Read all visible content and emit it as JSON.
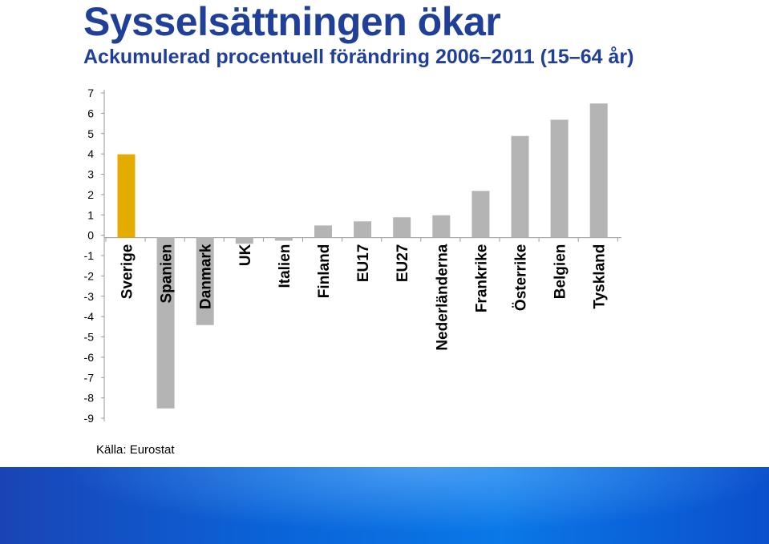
{
  "header": {
    "title": "Sysselsättningen ökar",
    "subtitle": "Ackumulerad procentuell förändring 2006–2011 (15–64 år)"
  },
  "source": "Källa: Eurostat",
  "colors": {
    "highlight": "#e3ad00",
    "bar": "#b4b4b4",
    "title": "#1f3f99",
    "footer": "#0a63d8"
  },
  "chart_data": {
    "type": "bar",
    "title": "Sysselsättningen ökar",
    "subtitle": "Ackumulerad procentuell förändring 2006–2011 (15–64 år)",
    "categories": [
      "Sverige",
      "Spanien",
      "Danmark",
      "UK",
      "Italien",
      "Finland",
      "EU17",
      "EU27",
      "Nederländerna",
      "Frankrike",
      "Österrike",
      "Belgien",
      "Tyskland"
    ],
    "values": [
      4.1,
      -8.4,
      -4.3,
      -0.3,
      -0.15,
      0.6,
      0.8,
      1.0,
      1.1,
      2.3,
      5.0,
      5.8,
      6.6
    ],
    "highlight_category": "Sverige",
    "ylim": [
      -9,
      7
    ],
    "yticks": [
      7,
      6,
      5,
      4,
      3,
      2,
      1,
      0,
      -1,
      -2,
      -3,
      -4,
      -5,
      -6,
      -7,
      -8,
      -9
    ],
    "grid": false,
    "legend": "none"
  }
}
